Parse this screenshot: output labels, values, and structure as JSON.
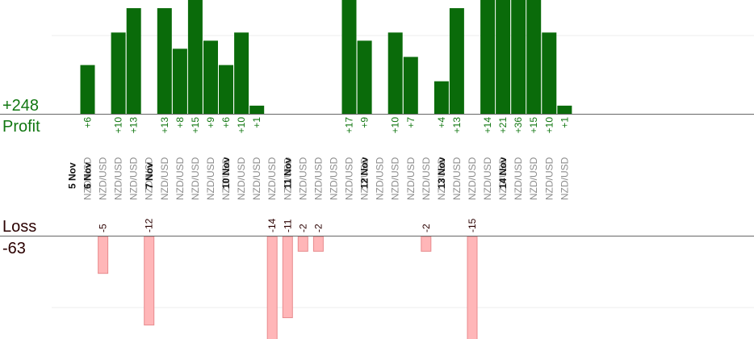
{
  "profit_panel": {
    "total": "+248",
    "label": "Profit"
  },
  "loss_panel": {
    "label": "Loss",
    "total": "-63"
  },
  "colors": {
    "profit_bar": "#0a6b0a",
    "profit_text": "#117711",
    "loss_bar": "#ffb6b8",
    "loss_bar_stroke": "#e88a8d",
    "loss_text": "#2b0000",
    "day_text": "#111111",
    "pair_text": "#8c8c8c",
    "axis": "#666666",
    "grid": "#eeeeee"
  },
  "chart_data": {
    "type": "bar",
    "title": "",
    "xlabel": "",
    "ylabel": "",
    "days": [
      "5 Nov",
      "6 Nov",
      "7 Nov",
      "10 Nov",
      "11 Nov",
      "12 Nov",
      "13 Nov",
      "14 Nov"
    ],
    "categories": [
      {
        "day": "5 Nov",
        "pair": "NZD/USD"
      },
      {
        "day": "6 Nov",
        "pair": "NZD/USD"
      },
      {
        "day": "6 Nov",
        "pair": "NZD/USD"
      },
      {
        "day": "6 Nov",
        "pair": "NZD/USD"
      },
      {
        "day": "6 Nov",
        "pair": "NZD/USD"
      },
      {
        "day": "7 Nov",
        "pair": "NZD/USD"
      },
      {
        "day": "7 Nov",
        "pair": "NZD/USD"
      },
      {
        "day": "7 Nov",
        "pair": "NZD/USD"
      },
      {
        "day": "7 Nov",
        "pair": "NZD/USD"
      },
      {
        "day": "7 Nov",
        "pair": "NZD/USD"
      },
      {
        "day": "10 Nov",
        "pair": "NZD/USD"
      },
      {
        "day": "10 Nov",
        "pair": "NZD/USD"
      },
      {
        "day": "10 Nov",
        "pair": "NZD/USD"
      },
      {
        "day": "10 Nov",
        "pair": "NZD/USD"
      },
      {
        "day": "11 Nov",
        "pair": "NZD/USD"
      },
      {
        "day": "11 Nov",
        "pair": "NZD/USD"
      },
      {
        "day": "11 Nov",
        "pair": "NZD/USD"
      },
      {
        "day": "11 Nov",
        "pair": "NZD/USD"
      },
      {
        "day": "11 Nov",
        "pair": "NZD/USD"
      },
      {
        "day": "12 Nov",
        "pair": "NZD/USD"
      },
      {
        "day": "12 Nov",
        "pair": "NZD/USD"
      },
      {
        "day": "12 Nov",
        "pair": "NZD/USD"
      },
      {
        "day": "12 Nov",
        "pair": "NZD/USD"
      },
      {
        "day": "12 Nov",
        "pair": "NZD/USD"
      },
      {
        "day": "13 Nov",
        "pair": "NZD/USD"
      },
      {
        "day": "13 Nov",
        "pair": "NZD/USD"
      },
      {
        "day": "13 Nov",
        "pair": "NZD/USD"
      },
      {
        "day": "13 Nov",
        "pair": "NZD/USD"
      },
      {
        "day": "14 Nov",
        "pair": "NZD/USD"
      },
      {
        "day": "14 Nov",
        "pair": "NZD/USD"
      },
      {
        "day": "14 Nov",
        "pair": "NZD/USD"
      },
      {
        "day": "14 Nov",
        "pair": "NZD/USD"
      }
    ],
    "profit": [
      6,
      null,
      10,
      13,
      null,
      13,
      8,
      15,
      9,
      6,
      10,
      1,
      null,
      null,
      null,
      null,
      null,
      17,
      9,
      null,
      10,
      7,
      null,
      4,
      13,
      null,
      14,
      21,
      36,
      15,
      10,
      1
    ],
    "loss": [
      null,
      -5,
      null,
      null,
      -12,
      null,
      null,
      null,
      null,
      null,
      null,
      null,
      -14,
      -11,
      -2,
      -2,
      null,
      null,
      null,
      null,
      null,
      null,
      -2,
      null,
      null,
      -15,
      null,
      null,
      null,
      null,
      null,
      null
    ],
    "profit_ylim": [
      0,
      14
    ],
    "loss_ylim": [
      -14,
      0
    ],
    "profit_labels": [
      "+6",
      "",
      "+10",
      "+13",
      "",
      "+13",
      "+8",
      "+15",
      "+9",
      "+6",
      "+10",
      "+1",
      "",
      "",
      "",
      "",
      "",
      "+17",
      "+9",
      "",
      "+10",
      "+7",
      "",
      "+4",
      "+13",
      "",
      "+14",
      "+21",
      "+36",
      "+15",
      "+10",
      "+1"
    ],
    "loss_labels": [
      "",
      "-5",
      "",
      "",
      "-12",
      "",
      "",
      "",
      "",
      "",
      "",
      "",
      "-14",
      "-11",
      "-2",
      "-2",
      "",
      "",
      "",
      "",
      "",
      "",
      "-2",
      "",
      "",
      "-15",
      "",
      "",
      "",
      "",
      "",
      ""
    ]
  }
}
